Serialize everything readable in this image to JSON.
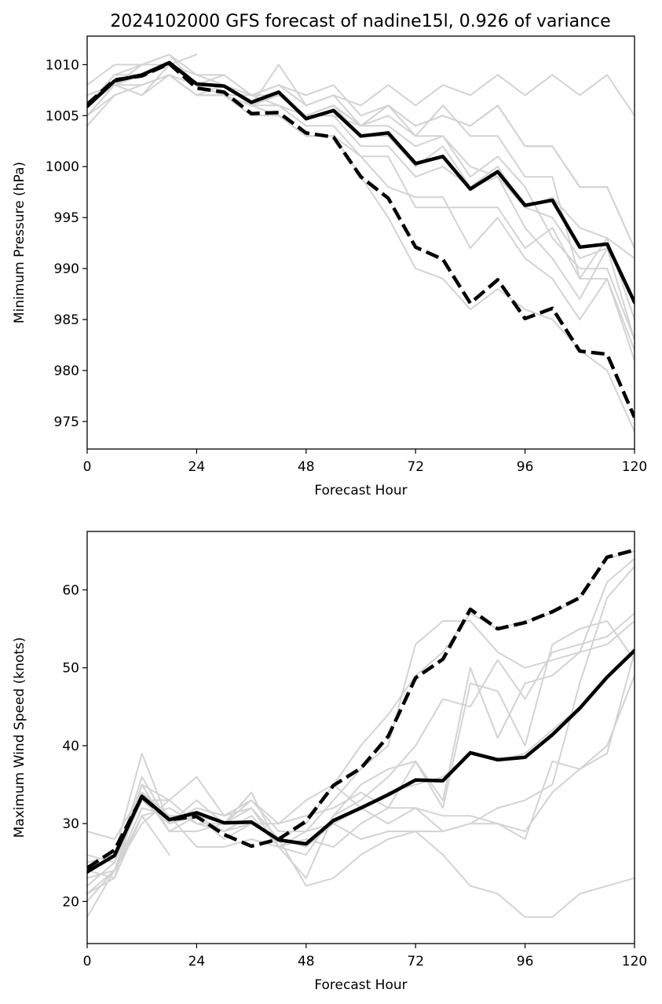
{
  "title": "2024102000 GFS forecast of nadine15l, 0.926 of variance",
  "colors": {
    "member": "#d3d3d3",
    "main": "#000000"
  },
  "chart_data": [
    {
      "type": "line",
      "xlabel": "Forecast Hour",
      "ylabel": "Minimum Pressure (hPa)",
      "xlim": [
        0,
        120
      ],
      "ylim": [
        972.3,
        1012.8
      ],
      "xticks": [
        0,
        24,
        48,
        72,
        96,
        120
      ],
      "yticks": [
        975,
        980,
        985,
        990,
        995,
        1000,
        1005,
        1010
      ],
      "grid": false,
      "x": [
        0,
        6,
        12,
        18,
        24,
        30,
        36,
        42,
        48,
        54,
        60,
        66,
        72,
        78,
        84,
        90,
        96,
        102,
        108,
        114,
        120
      ],
      "members": [
        [
          1008,
          1010,
          1010,
          1011,
          1009,
          1008,
          1006,
          1007,
          1005,
          1006,
          1003,
          1003,
          1000,
          1002,
          998,
          1000,
          996,
          995,
          991,
          992,
          987
        ],
        [
          1006,
          1009,
          1009,
          1010,
          1008,
          1007,
          1007,
          1006,
          1005,
          1005,
          1004,
          1004,
          1002,
          1003,
          1000,
          999,
          996,
          997,
          994,
          993,
          991
        ],
        [
          1005,
          1008,
          1009,
          1010,
          1008,
          1009,
          1007,
          1008,
          1006,
          1007,
          1006,
          1008,
          1006,
          1008,
          1007,
          1009,
          1007,
          1009,
          1007,
          1009,
          1005
        ],
        [
          1007,
          1008,
          1010,
          1010,
          1009,
          1009,
          1007,
          1008,
          1007,
          1008,
          1005,
          1006,
          1004,
          1005,
          1004,
          1006,
          1002,
          1002,
          998,
          998,
          992
        ],
        [
          1004,
          1007,
          1008,
          1009,
          1007,
          1008,
          1006,
          1007,
          1005,
          1005,
          1002,
          1002,
          999,
          1000,
          998,
          999,
          994,
          991,
          987,
          992,
          983
        ],
        [
          1006,
          1009,
          1010,
          1011,
          1008,
          1008,
          1006,
          1006,
          1004,
          1004,
          1001,
          1001,
          996,
          996,
          996,
          996,
          992,
          994,
          989,
          989,
          981
        ],
        [
          1005,
          1008,
          1009,
          1010,
          1008,
          1007,
          1006,
          1005,
          1003,
          1003,
          999,
          995,
          990,
          989,
          986,
          988,
          986,
          985,
          982,
          980,
          974
        ],
        [
          1007,
          1008,
          1008,
          1009,
          1007,
          1007,
          1005,
          1005,
          1003,
          1003,
          1001,
          998,
          997,
          997,
          992,
          995,
          991,
          989,
          985,
          989,
          982
        ],
        [
          1006,
          1008,
          1009,
          1010,
          1008,
          1008,
          1006,
          1007,
          1005,
          1006,
          1004,
          1006,
          1003,
          1006,
          1003,
          1003,
          999,
          999,
          989,
          993,
          985
        ],
        [
          1005,
          1007,
          1008,
          1009,
          1008,
          1008,
          1007,
          1007,
          1005,
          1006,
          1004,
          1005,
          1003,
          1003,
          999,
          1001,
          998,
          993,
          990,
          990,
          983
        ],
        [
          1006,
          1008,
          1007,
          1010,
          1011
        ],
        [
          1005,
          1008,
          1007,
          1009,
          1007,
          1007,
          1006,
          1010,
          1006,
          1007,
          1004,
          1006,
          1004,
          1005,
          1004,
          1006,
          1002,
          1002,
          998,
          998,
          992
        ]
      ],
      "series": [
        {
          "style": "solid",
          "values": [
            1005.9,
            1008.4,
            1009.0,
            1010.2,
            1008.1,
            1007.9,
            1006.3,
            1007.3,
            1004.7,
            1005.5,
            1003.0,
            1003.3,
            1000.3,
            1001.0,
            997.8,
            999.5,
            996.2,
            996.7,
            992.1,
            992.4,
            986.7
          ]
        },
        {
          "style": "dashed",
          "values": [
            1006.1,
            1008.5,
            1008.9,
            1010.1,
            1007.7,
            1007.3,
            1005.2,
            1005.3,
            1003.3,
            1002.9,
            999.0,
            996.9,
            992.1,
            990.9,
            986.6,
            988.9,
            985.1,
            986.1,
            981.9,
            981.6,
            975.4
          ]
        }
      ]
    },
    {
      "type": "line",
      "xlabel": "Forecast Hour",
      "ylabel": "Maximum Wind Speed (knots)",
      "xlim": [
        0,
        120
      ],
      "ylim": [
        14.6,
        67.5
      ],
      "xticks": [
        0,
        24,
        48,
        72,
        96,
        120
      ],
      "yticks": [
        20,
        30,
        40,
        50,
        60
      ],
      "grid": false,
      "x": [
        0,
        6,
        12,
        18,
        24,
        30,
        36,
        42,
        48,
        54,
        60,
        66,
        72,
        78,
        84,
        90,
        96,
        102,
        108,
        114,
        120
      ],
      "members": [
        [
          24,
          26,
          33,
          30,
          31,
          30,
          30,
          28,
          27,
          30,
          32,
          34,
          35,
          36,
          39,
          38,
          39,
          42,
          45,
          49,
          52
        ],
        [
          22,
          25,
          36,
          30,
          32,
          31,
          32,
          27,
          23,
          31,
          35,
          37,
          38,
          33,
          50,
          41,
          48,
          49,
          52,
          53,
          56
        ],
        [
          29,
          28,
          34,
          29,
          31,
          28,
          30,
          28,
          22,
          23,
          26,
          28,
          29,
          26,
          22,
          21,
          18,
          18,
          21,
          22,
          23
        ],
        [
          26,
          25,
          35,
          33,
          36,
          31,
          33,
          29,
          29,
          30,
          28,
          29,
          29,
          29,
          30,
          30,
          29,
          34,
          37,
          40,
          49
        ],
        [
          21,
          24,
          32,
          31,
          27,
          27,
          28,
          27,
          29,
          33,
          37,
          40,
          53,
          56,
          56,
          52,
          50,
          51,
          52,
          61,
          64
        ],
        [
          23,
          24,
          31,
          32,
          30,
          30,
          32,
          28,
          30,
          35,
          40,
          44,
          49,
          52,
          57,
          55,
          56,
          57,
          59,
          64,
          65
        ],
        [
          25,
          26,
          39,
          30,
          33,
          30,
          33,
          30,
          31,
          32,
          34,
          32,
          32,
          31,
          31,
          30,
          28,
          38,
          37,
          39,
          52
        ],
        [
          18,
          24,
          34,
          31,
          31,
          29,
          31,
          27,
          26,
          31,
          33,
          36,
          40,
          46,
          45,
          51,
          46,
          52,
          53,
          54,
          57
        ],
        [
          22,
          25,
          33,
          33,
          30,
          29,
          30,
          30,
          33,
          35,
          32,
          30,
          32,
          29,
          30,
          32,
          33,
          35,
          48,
          59,
          63
        ],
        [
          24,
          23,
          31,
          26
        ],
        [
          20,
          24,
          30,
          33
        ],
        [
          21,
          23,
          35,
          29,
          29,
          30,
          34,
          27,
          28,
          27,
          30,
          32,
          38,
          32,
          48,
          47,
          40,
          53,
          55,
          56,
          51
        ]
      ],
      "series": [
        {
          "style": "solid",
          "values": [
            23.8,
            25.9,
            33.5,
            30.5,
            31.4,
            30.1,
            30.2,
            27.9,
            27.4,
            30.4,
            32.0,
            33.7,
            35.6,
            35.5,
            39.1,
            38.2,
            38.5,
            41.4,
            44.8,
            48.8,
            52.2
          ]
        },
        {
          "style": "dashed",
          "values": [
            24.3,
            26.6,
            33.4,
            30.5,
            30.9,
            28.6,
            27.1,
            28.0,
            30.3,
            34.9,
            37.1,
            41.2,
            48.7,
            51.1,
            57.5,
            55.0,
            55.8,
            57.2,
            59.0,
            64.2,
            65.1
          ]
        }
      ]
    }
  ]
}
